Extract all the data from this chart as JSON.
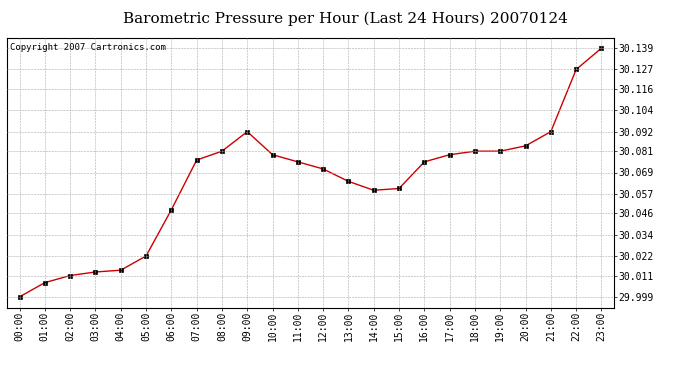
{
  "title": "Barometric Pressure per Hour (Last 24 Hours) 20070124",
  "copyright_text": "Copyright 2007 Cartronics.com",
  "x_labels": [
    "00:00",
    "01:00",
    "02:00",
    "03:00",
    "04:00",
    "05:00",
    "06:00",
    "07:00",
    "08:00",
    "09:00",
    "10:00",
    "11:00",
    "12:00",
    "13:00",
    "14:00",
    "15:00",
    "16:00",
    "17:00",
    "18:00",
    "19:00",
    "20:00",
    "21:00",
    "22:00",
    "23:00"
  ],
  "y_values": [
    29.999,
    30.007,
    30.011,
    30.013,
    30.014,
    30.022,
    30.048,
    30.076,
    30.081,
    30.092,
    30.079,
    30.075,
    30.071,
    30.064,
    30.059,
    30.06,
    30.075,
    30.079,
    30.081,
    30.081,
    30.084,
    30.092,
    30.127,
    30.139
  ],
  "line_color": "#cc0000",
  "marker": "s",
  "marker_size": 2.5,
  "marker_color": "#000000",
  "bg_color": "#ffffff",
  "grid_color": "#aaaaaa",
  "yticks": [
    29.999,
    30.011,
    30.022,
    30.034,
    30.046,
    30.057,
    30.069,
    30.081,
    30.092,
    30.104,
    30.116,
    30.127,
    30.139
  ],
  "ylim_min": 29.993,
  "ylim_max": 30.145,
  "title_fontsize": 11,
  "tick_fontsize": 7,
  "copyright_fontsize": 6.5
}
